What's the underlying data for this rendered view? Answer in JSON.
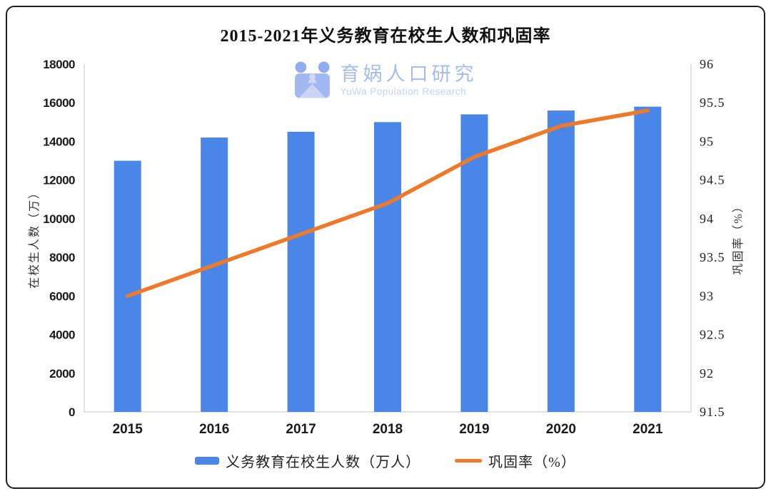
{
  "card": {
    "title": "2015-2021年义务教育在校生人数和巩固率"
  },
  "watermark": {
    "name": "育娲人口研究",
    "subtitle": "YuWa Population Research",
    "logo_colors": {
      "circles": "#8ba7ee",
      "square": "#9db5f2",
      "flap": "#c7d4f8",
      "figure": "#ccd8f9"
    }
  },
  "chart_data": {
    "type": "bar",
    "subtype": "bar+line combo, dual y-axes",
    "title": "2015-2021年义务教育在校生人数和巩固率",
    "categories": [
      "2015",
      "2016",
      "2017",
      "2018",
      "2019",
      "2020",
      "2021"
    ],
    "series": [
      {
        "name": "义务教育在校生人数（万人）",
        "type": "bar",
        "axis": "left",
        "values": [
          13000,
          14200,
          14500,
          15000,
          15400,
          15600,
          15800
        ],
        "color": "#4a86e8"
      },
      {
        "name": "巩固率（%）",
        "type": "line",
        "axis": "right",
        "values": [
          93.0,
          93.4,
          93.8,
          94.2,
          94.8,
          95.2,
          95.4
        ],
        "color": "#ed7a2b"
      }
    ],
    "left_axis": {
      "label": "在校生人数（万）",
      "min": 0,
      "max": 18000,
      "step": 2000,
      "ticks": [
        "0",
        "2000",
        "4000",
        "6000",
        "8000",
        "10000",
        "12000",
        "14000",
        "16000",
        "18000"
      ]
    },
    "right_axis": {
      "label": "巩固率（%）",
      "min": 91.5,
      "max": 96,
      "step": 0.5,
      "ticks": [
        "91.5",
        "92",
        "92.5",
        "93",
        "93.5",
        "94",
        "94.5",
        "95",
        "95.5",
        "96"
      ]
    },
    "grid": false,
    "legend_position": "bottom",
    "spine_color": "#d9d9d9"
  }
}
